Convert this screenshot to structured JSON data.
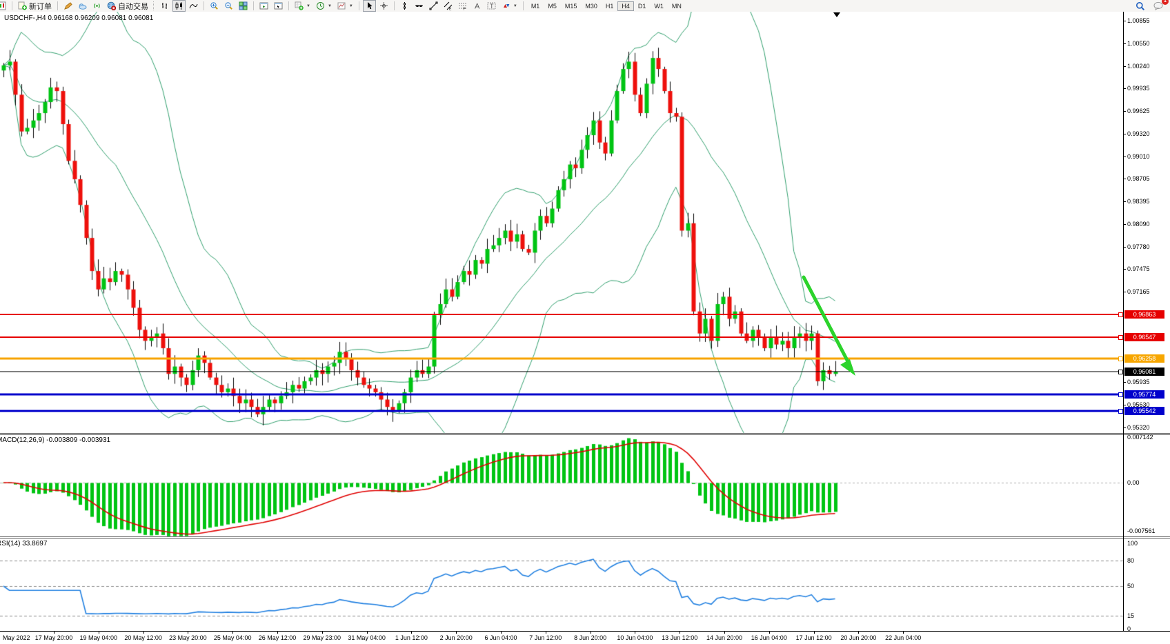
{
  "toolbar": {
    "new_order_label": "新订单",
    "autotrade_label": "自动交易",
    "timeframes": [
      "M1",
      "M5",
      "M15",
      "M30",
      "H1",
      "H4",
      "D1",
      "W1",
      "MN"
    ],
    "active_timeframe": "H4",
    "notification_count": "1",
    "icons": [
      "chart-window",
      "new-order",
      "crayon",
      "cloud",
      "signal",
      "autotrade-globe",
      "bar-chart",
      "candlestick-chart",
      "line-chart",
      "zoom-in",
      "zoom-out",
      "tile-windows",
      "window-play",
      "window-cursor",
      "add-indicator",
      "periods-clock",
      "template",
      "cursor",
      "crosshair",
      "vertical-line",
      "horizontal-line",
      "trendline",
      "equidistant-channel",
      "fibonacci",
      "text",
      "text-label",
      "arrows",
      "search",
      "chat"
    ]
  },
  "chart": {
    "symbol_title": "USDCHF-,H4",
    "ohlc_text": "0.96168 0.96209 0.96081 0.96081",
    "colors": {
      "up": "#00c413",
      "down": "#ee100c",
      "wick": "#000000",
      "bollinger": "#2f9e6c",
      "arrow": "#2bd32b"
    },
    "price_axis": {
      "ticks": [
        {
          "t": "1.00855",
          "v": 1.00855
        },
        {
          "t": "1.00550",
          "v": 1.0055
        },
        {
          "t": "1.00240",
          "v": 1.0024
        },
        {
          "t": "0.99935",
          "v": 0.99935
        },
        {
          "t": "0.99625",
          "v": 0.99625
        },
        {
          "t": "0.99320",
          "v": 0.9932
        },
        {
          "t": "0.99010",
          "v": 0.9901
        },
        {
          "t": "0.98705",
          "v": 0.98705
        },
        {
          "t": "0.98395",
          "v": 0.98395
        },
        {
          "t": "0.98090",
          "v": 0.9809
        },
        {
          "t": "0.97780",
          "v": 0.9778
        },
        {
          "t": "0.97475",
          "v": 0.97475
        },
        {
          "t": "0.97165",
          "v": 0.97165
        },
        {
          "t": "0.95935",
          "v": 0.95935
        },
        {
          "t": "0.95630",
          "v": 0.9563
        },
        {
          "t": "0.95320",
          "v": 0.9532
        }
      ]
    },
    "hlines": [
      {
        "price": "0.96863",
        "value": 0.96863,
        "color": "#e60000",
        "thickness": 2,
        "name": "resistance-1"
      },
      {
        "price": "0.96547",
        "value": 0.96547,
        "color": "#e60000",
        "thickness": 2,
        "name": "resistance-2"
      },
      {
        "price": "0.96258",
        "value": 0.96258,
        "color": "#f7a600",
        "thickness": 3,
        "name": "pivot-orange"
      },
      {
        "price": "0.96081",
        "value": 0.96081,
        "color": "#000000",
        "thickness": 1,
        "name": "current-price"
      },
      {
        "price": "0.95774",
        "value": 0.95774,
        "color": "#0000cc",
        "thickness": 3,
        "name": "support-1"
      },
      {
        "price": "0.95542",
        "value": 0.95542,
        "color": "#0000cc",
        "thickness": 3,
        "name": "support-2"
      }
    ],
    "candles": {
      "closes": [
        1.0025,
        1.003,
        0.9985,
        0.9935,
        0.994,
        0.995,
        0.996,
        0.9975,
        0.9995,
        0.999,
        0.9945,
        0.9895,
        0.987,
        0.9835,
        0.979,
        0.9745,
        0.972,
        0.9735,
        0.973,
        0.9745,
        0.974,
        0.972,
        0.9695,
        0.9665,
        0.965,
        0.9655,
        0.966,
        0.964,
        0.9605,
        0.9615,
        0.96,
        0.959,
        0.961,
        0.963,
        0.962,
        0.96,
        0.959,
        0.958,
        0.9585,
        0.9575,
        0.9565,
        0.957,
        0.956,
        0.955,
        0.956,
        0.957,
        0.9565,
        0.9575,
        0.958,
        0.959,
        0.9585,
        0.9595,
        0.96,
        0.961,
        0.9605,
        0.9615,
        0.962,
        0.9635,
        0.9625,
        0.961,
        0.96,
        0.959,
        0.9585,
        0.958,
        0.957,
        0.956,
        0.9555,
        0.9565,
        0.958,
        0.96,
        0.961,
        0.9605,
        0.9615,
        0.9685,
        0.97,
        0.972,
        0.971,
        0.973,
        0.9745,
        0.974,
        0.976,
        0.9755,
        0.9775,
        0.978,
        0.979,
        0.98,
        0.9785,
        0.9795,
        0.9775,
        0.977,
        0.98,
        0.982,
        0.981,
        0.983,
        0.9855,
        0.987,
        0.989,
        0.9885,
        0.991,
        0.993,
        0.995,
        0.992,
        0.9905,
        0.995,
        0.999,
        1.002,
        1.003,
        0.9985,
        0.996,
        1.0,
        1.0035,
        1.002,
        0.999,
        0.996,
        0.9955,
        0.98,
        0.981,
        0.969,
        0.966,
        0.968,
        0.965,
        0.97,
        0.971,
        0.968,
        0.969,
        0.966,
        0.965,
        0.9665,
        0.9655,
        0.964,
        0.9655,
        0.9645,
        0.965,
        0.964,
        0.9655,
        0.966,
        0.965,
        0.966,
        0.9595,
        0.961,
        0.9605,
        0.96081
      ]
    },
    "bollinger": {
      "period": 20,
      "deviation": 2
    }
  },
  "macd": {
    "label": "MACD(12,26,9) -0.003809 -0.003931",
    "main_value": "-0.003809",
    "signal_value": "-0.003931",
    "axis": [
      {
        "t": "0.007142",
        "v": 0.007142
      },
      {
        "t": "0.00",
        "v": 0
      },
      {
        "t": "-0.007561",
        "v": -0.007561
      }
    ],
    "histogram_color": "#00c413",
    "signal_color": "#e00000"
  },
  "rsi": {
    "label": "RSI(14) 33.8697",
    "current_value": "33.8697",
    "axis": [
      {
        "t": "100",
        "v": 100
      },
      {
        "t": "80",
        "v": 80
      },
      {
        "t": "50",
        "v": 50
      },
      {
        "t": "15",
        "v": 15
      },
      {
        "t": "0",
        "v": 0
      }
    ],
    "levels": [
      80,
      50,
      15
    ],
    "line_color": "#1f7fe0"
  },
  "time_axis": {
    "labels": [
      "May 2022",
      "17 May 20:00",
      "19 May 04:00",
      "20 May 12:00",
      "23 May 20:00",
      "25 May 04:00",
      "26 May 12:00",
      "29 May 23:00",
      "31 May 04:00",
      "1 Jun 12:00",
      "2 Jun 20:00",
      "6 Jun 04:00",
      "7 Jun 12:00",
      "8 Jun 20:00",
      "10 Jun 04:00",
      "13 Jun 12:00",
      "14 Jun 20:00",
      "16 Jun 04:00",
      "17 Jun 12:00",
      "20 Jun 20:00",
      "22 Jun 04:00"
    ]
  }
}
